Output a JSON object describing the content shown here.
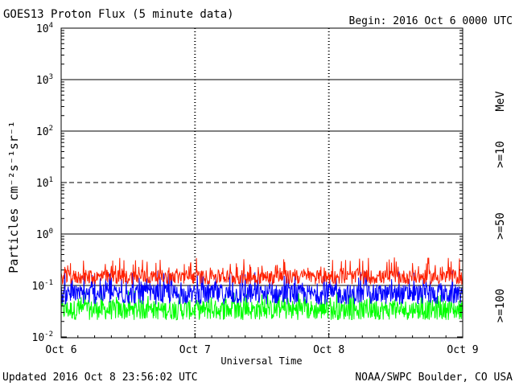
{
  "header": {
    "title": "GOES13 Proton Flux (5 minute data)",
    "begin": "Begin: 2016 Oct 6 0000 UTC"
  },
  "footer": {
    "updated": "Updated 2016 Oct  8 23:56:02 UTC",
    "credit": "NOAA/SWPC Boulder, CO USA"
  },
  "chart_data": {
    "type": "line",
    "title": "GOES13 Proton Flux (5 minute data)",
    "xlabel": "Universal Time",
    "ylabel": "Particles cm⁻²s⁻¹sr⁻¹",
    "y_scale": "log",
    "ylim": [
      0.01,
      10000
    ],
    "y_ticks": [
      {
        "base": "10",
        "exp": "4"
      },
      {
        "base": "10",
        "exp": "3"
      },
      {
        "base": "10",
        "exp": "2"
      },
      {
        "base": "10",
        "exp": "1"
      },
      {
        "base": "10",
        "exp": "0"
      },
      {
        "base": "10",
        "exp": "-1"
      },
      {
        "base": "10",
        "exp": "-2"
      }
    ],
    "x_range": [
      "2016-10-06 00:00",
      "2016-10-09 00:00"
    ],
    "x_ticks": [
      "Oct 6",
      "Oct 7",
      "Oct 8",
      "Oct 9"
    ],
    "grid": true,
    "unit_label": "MeV",
    "series": [
      {
        "name": ">=10",
        "color": "#ff2000",
        "typical": 0.15,
        "range": [
          0.1,
          0.35
        ]
      },
      {
        "name": ">=50",
        "color": "#0000ff",
        "typical": 0.07,
        "range": [
          0.04,
          0.2
        ]
      },
      {
        "name": ">=100",
        "color": "#00ff00",
        "typical": 0.035,
        "range": [
          0.02,
          0.08
        ]
      }
    ]
  }
}
